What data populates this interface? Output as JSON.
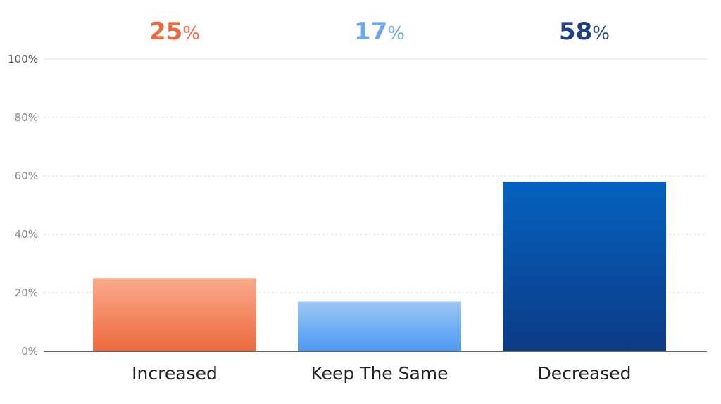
{
  "chart_data": {
    "type": "bar",
    "categories": [
      "Increased",
      "Keep The Same",
      "Decreased"
    ],
    "values": [
      25,
      17,
      58
    ],
    "value_labels": [
      {
        "number": "25",
        "unit": "%"
      },
      {
        "number": "17",
        "unit": "%"
      },
      {
        "number": "58",
        "unit": "%"
      }
    ],
    "ylim": [
      0,
      100
    ],
    "yticks": [
      0,
      20,
      40,
      60,
      80,
      100
    ],
    "ytick_labels": [
      "0%",
      "20%",
      "40%",
      "60%",
      "80%",
      "100%"
    ],
    "grid": true,
    "colors": {
      "bars": [
        {
          "top": "#f9a98c",
          "bottom": "#ee6a3d"
        },
        {
          "top": "#9ec8f6",
          "bottom": "#4a98f1"
        },
        {
          "top": "#0462bf",
          "bottom": "#0c3a86"
        }
      ],
      "labels": [
        "#ec6840",
        "#6ea6f3",
        "#1f4089"
      ]
    }
  }
}
